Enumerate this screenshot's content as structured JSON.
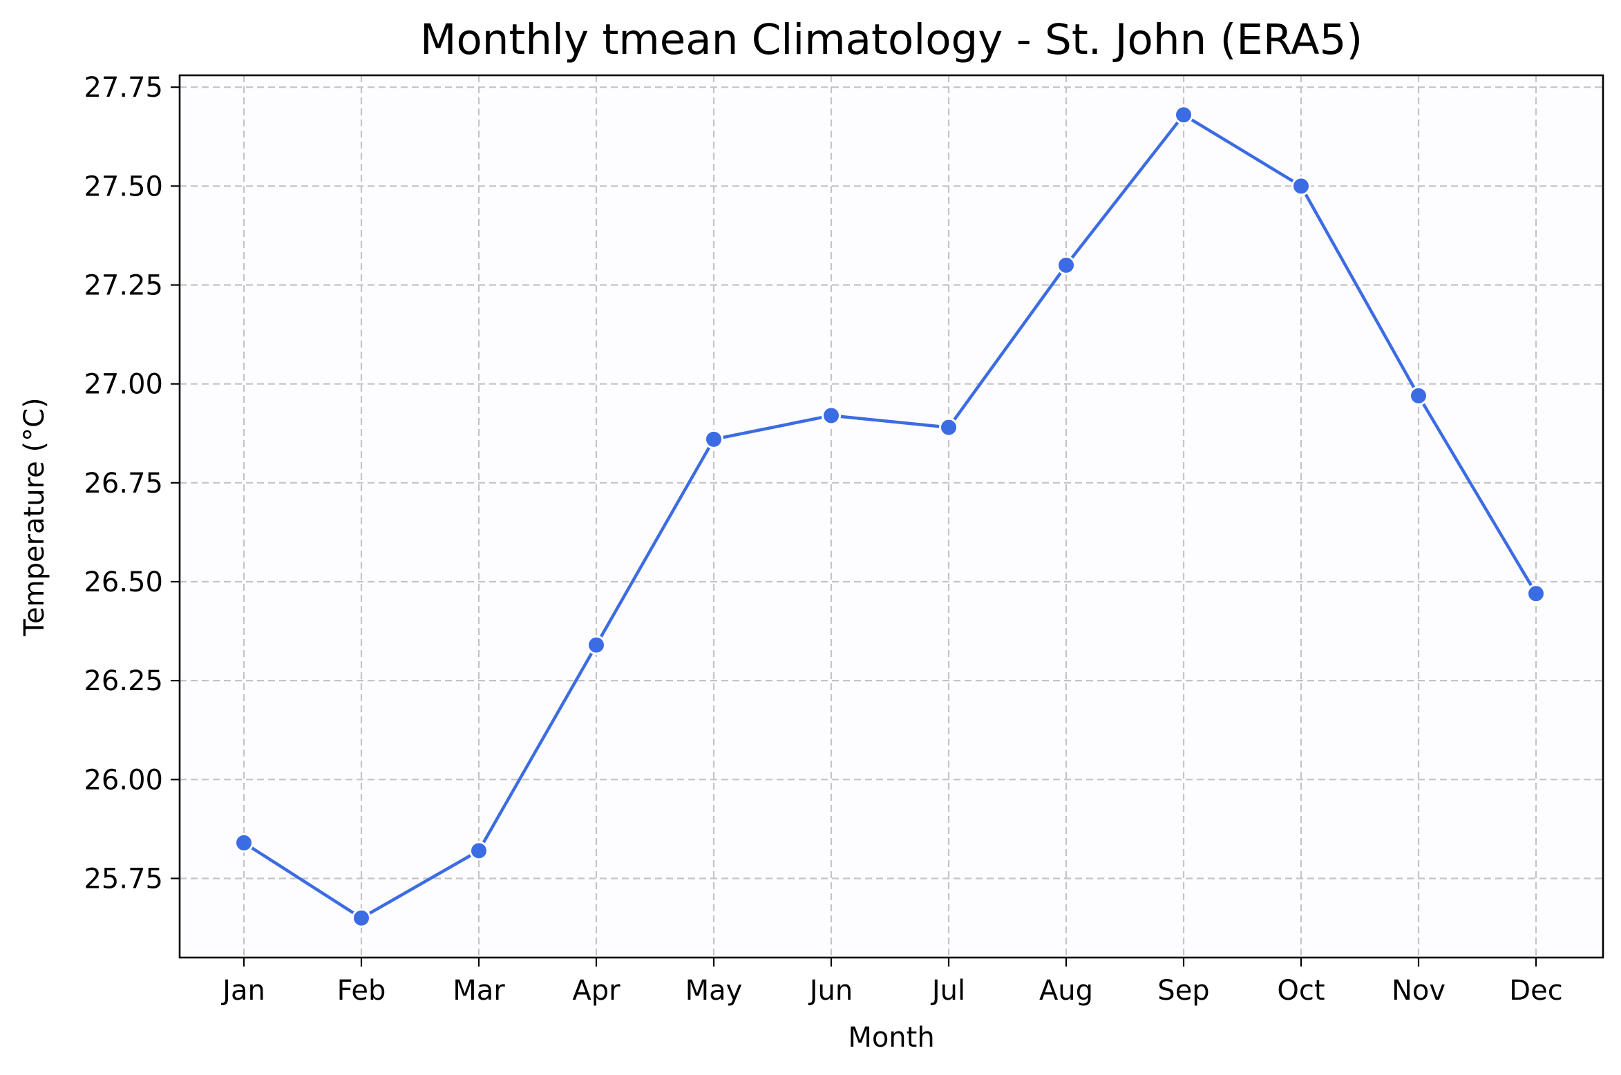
{
  "chart_data": {
    "type": "line",
    "title": "Monthly tmean Climatology - St. John (ERA5)",
    "xlabel": "Month",
    "ylabel": "Temperature (°C)",
    "categories": [
      "Jan",
      "Feb",
      "Mar",
      "Apr",
      "May",
      "Jun",
      "Jul",
      "Aug",
      "Sep",
      "Oct",
      "Nov",
      "Dec"
    ],
    "values": [
      25.84,
      25.65,
      25.82,
      26.34,
      26.86,
      26.92,
      26.89,
      27.3,
      27.68,
      27.5,
      26.97,
      26.47
    ],
    "ylim": [
      25.55,
      27.78
    ],
    "yticks": [
      25.75,
      26.0,
      26.25,
      26.5,
      26.75,
      27.0,
      27.25,
      27.5,
      27.75
    ],
    "ytick_labels": [
      "25.75",
      "26.00",
      "26.25",
      "26.50",
      "26.75",
      "27.00",
      "27.25",
      "27.50",
      "27.75"
    ],
    "grid": true,
    "legend": false,
    "series_color": "#3c6ce4",
    "marker_edge_color": "#ffffff",
    "grid_color": "#c4c4c4",
    "plot_background": "#fdfcfe"
  }
}
